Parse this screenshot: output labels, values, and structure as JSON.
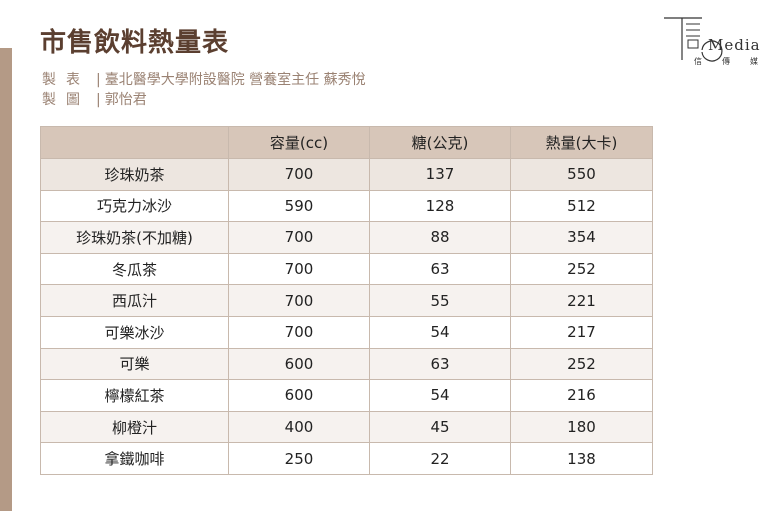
{
  "title": "市售飲料熱量表",
  "credits": [
    {
      "label": "製表",
      "separator": "|",
      "value": "臺北醫學大學附設醫院 營養室主任 蘇秀悅"
    },
    {
      "label": "製圖",
      "separator": "|",
      "value": "郭怡君"
    }
  ],
  "logo": {
    "text": "Media",
    "sub": [
      "信",
      "傳",
      "媒"
    ]
  },
  "table": {
    "headers": [
      "",
      "容量(cc)",
      "糖(公克)",
      "熱量(大卡)"
    ],
    "rows": [
      [
        "珍珠奶茶",
        "700",
        "137",
        "550"
      ],
      [
        "巧克力冰沙",
        "590",
        "128",
        "512"
      ],
      [
        "珍珠奶茶(不加糖)",
        "700",
        "88",
        "354"
      ],
      [
        "冬瓜茶",
        "700",
        "63",
        "252"
      ],
      [
        "西瓜汁",
        "700",
        "55",
        "221"
      ],
      [
        "可樂冰沙",
        "700",
        "54",
        "217"
      ],
      [
        "可樂",
        "600",
        "63",
        "252"
      ],
      [
        "檸檬紅茶",
        "600",
        "54",
        "216"
      ],
      [
        "柳橙汁",
        "400",
        "45",
        "180"
      ],
      [
        "拿鐵咖啡",
        "250",
        "22",
        "138"
      ]
    ]
  }
}
